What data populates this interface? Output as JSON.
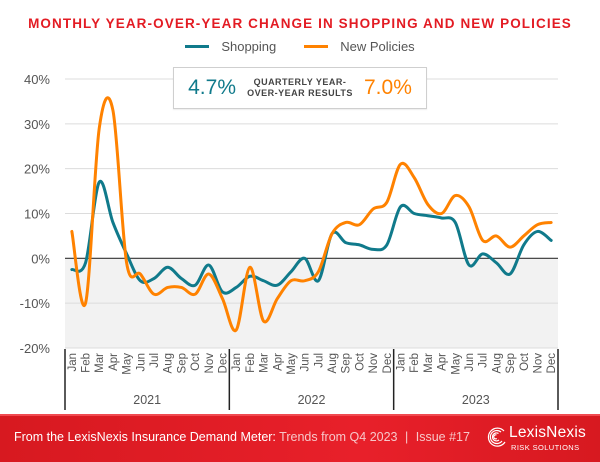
{
  "chart_data": {
    "type": "line",
    "title": "MONTHLY YEAR-OVER-YEAR CHANGE IN SHOPPING AND NEW POLICIES",
    "xlabel": "",
    "ylabel": "",
    "ylim": [
      -20,
      40
    ],
    "yticks": [
      40,
      30,
      20,
      10,
      0,
      -10,
      -20
    ],
    "ytick_labels": [
      "40%",
      "30%",
      "20%",
      "10%",
      "0%",
      "-10%",
      "-20%"
    ],
    "grid": true,
    "legend_position": "top-center",
    "months": [
      "Jan",
      "Feb",
      "Mar",
      "Apr",
      "May",
      "Jun",
      "Jul",
      "Aug",
      "Sep",
      "Oct",
      "Nov",
      "Dec"
    ],
    "years": [
      "2021",
      "2022",
      "2023"
    ],
    "series": [
      {
        "name": "Shopping",
        "color": "#107a8b",
        "values": [
          -2.5,
          -1,
          17,
          8,
          1,
          -5,
          -4.5,
          -2,
          -4.5,
          -6,
          -1.5,
          -7.5,
          -6.5,
          -4,
          -5,
          -6,
          -3,
          0,
          -5,
          5.5,
          3.5,
          3,
          2,
          3,
          11.5,
          10,
          9.5,
          9,
          8,
          -1.5,
          1,
          -1,
          -3.5,
          3,
          6,
          4
        ]
      },
      {
        "name": "New Policies",
        "color": "#ff8200",
        "values": [
          6,
          -10,
          29,
          33,
          -1,
          -3.5,
          -8,
          -6.5,
          -6.5,
          -8,
          -3.5,
          -9,
          -16,
          -2,
          -14,
          -9,
          -5,
          -5,
          -3,
          5.5,
          8,
          7.5,
          11,
          12.5,
          21,
          18,
          12,
          10,
          14,
          11.5,
          4,
          5,
          2.5,
          5,
          7.5,
          8
        ]
      }
    ],
    "annotation": {
      "label": "QUARTERLY YEAR-OVER-YEAR RESULTS",
      "shopping_value": "4.7%",
      "new_policies_value": "7.0%"
    }
  },
  "colors": {
    "shopping": "#107a8b",
    "new_policies": "#ff8200",
    "title": "#e31b23",
    "footer": "#e31b23"
  },
  "footer": {
    "source_bold": "From the LexisNexis Insurance Demand Meter:",
    "source_light": "Trends from Q4 2023",
    "separator": "|",
    "issue": "Issue #17",
    "logo_name": "LexisNexis",
    "logo_sub": "RISK SOLUTIONS",
    "logo_icon": "lexisnexis-swirl-icon"
  }
}
